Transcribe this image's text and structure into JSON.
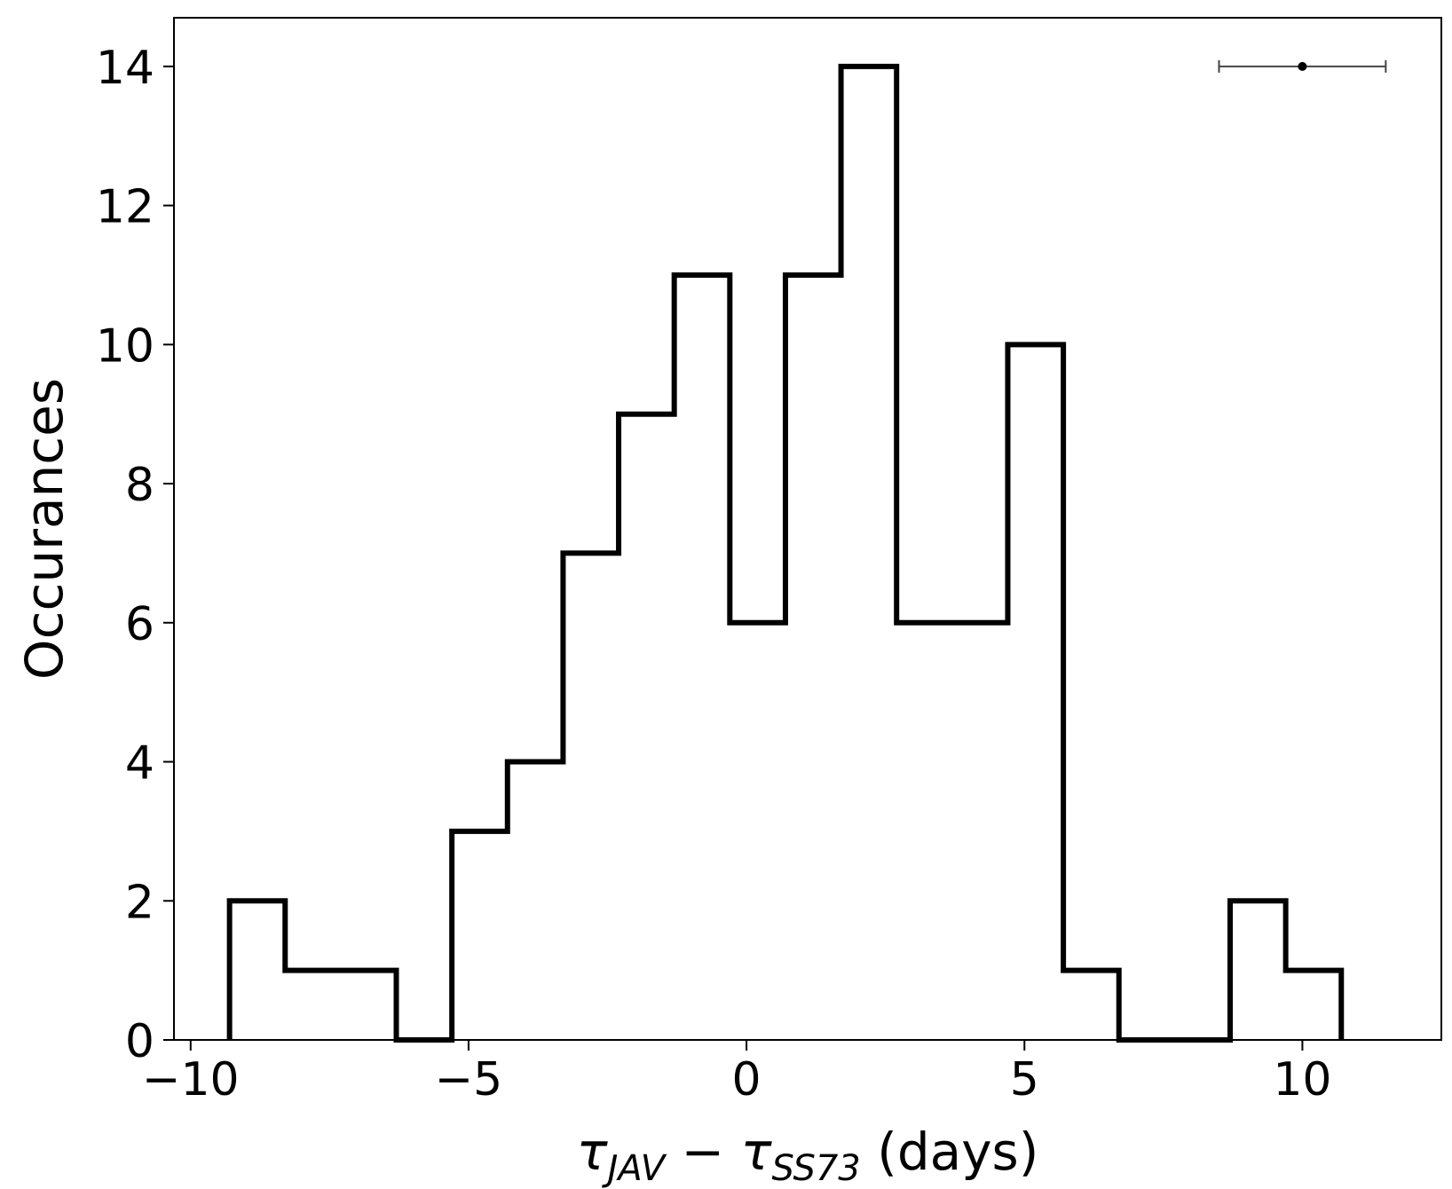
{
  "chart_data": {
    "type": "histogram",
    "xlabel": {
      "base1": "τ",
      "sub1": "JAV",
      "op": " − ",
      "base2": "τ",
      "sub2": "SS73",
      "tail": " (days)"
    },
    "ylabel": "Occurances",
    "xlim": [
      -10.3,
      12.5
    ],
    "ylim": [
      0,
      14.7
    ],
    "x_ticks": [
      -10,
      -5,
      0,
      5,
      10
    ],
    "x_tick_labels": [
      "−10",
      "−5",
      "0",
      "5",
      "10"
    ],
    "y_ticks": [
      0,
      2,
      4,
      6,
      8,
      10,
      12,
      14
    ],
    "y_tick_labels": [
      "0",
      "2",
      "4",
      "6",
      "8",
      "10",
      "12",
      "14"
    ],
    "bin_edges": [
      -9.3,
      -8.3,
      -7.3,
      -6.3,
      -5.3,
      -4.3,
      -3.3,
      -2.3,
      -1.3,
      -0.3,
      0.7,
      1.7,
      2.7,
      3.7,
      4.7,
      5.7,
      6.7,
      7.7,
      8.7,
      9.7,
      10.7
    ],
    "counts": [
      2,
      1,
      1,
      0,
      3,
      4,
      7,
      9,
      11,
      6,
      11,
      14,
      6,
      6,
      10,
      1,
      0,
      0,
      2,
      1
    ],
    "error_bar": {
      "x": 10.0,
      "y": 14,
      "xerr": 1.5
    },
    "grid": false,
    "line_color": "#000000",
    "errorbar_color": "#444444"
  }
}
